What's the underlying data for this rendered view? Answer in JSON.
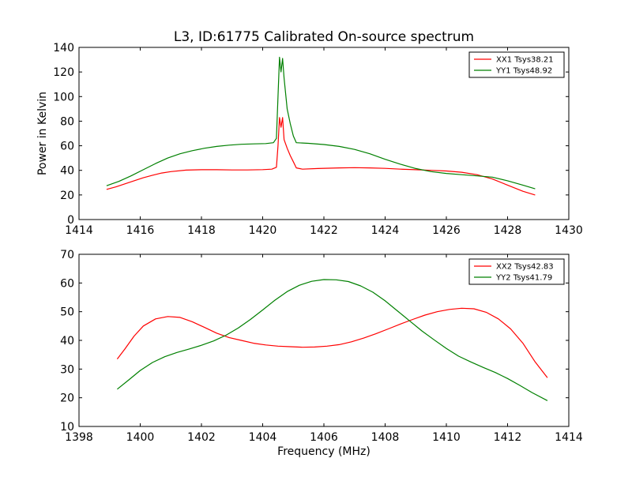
{
  "figure": {
    "title": "L3, ID:61775 Calibrated On-source spectrum",
    "ylabel": "Power in Kelvin",
    "xlabel": "Frequency (MHz)"
  },
  "chart_data": [
    {
      "type": "line",
      "title": "L3, ID:61775 Calibrated On-source spectrum",
      "xlabel": "",
      "ylabel": "Power in Kelvin",
      "xlim": [
        1414,
        1430
      ],
      "ylim": [
        0,
        140
      ],
      "xticks": [
        "1414",
        "1416",
        "1418",
        "1420",
        "1422",
        "1424",
        "1426",
        "1428",
        "1430"
      ],
      "yticks": [
        "0",
        "20",
        "40",
        "60",
        "80",
        "100",
        "120",
        "140"
      ],
      "legend": "top-right",
      "series": [
        {
          "name": "XX1 Tsys38.21",
          "color": "#ff0000",
          "points": [
            [
              1414.9,
              24.5
            ],
            [
              1415.2,
              26.5
            ],
            [
              1415.5,
              29
            ],
            [
              1415.8,
              31.5
            ],
            [
              1416.1,
              34
            ],
            [
              1416.4,
              36
            ],
            [
              1416.7,
              37.8
            ],
            [
              1417.0,
              39
            ],
            [
              1417.5,
              40.2
            ],
            [
              1418.0,
              40.5
            ],
            [
              1418.5,
              40.5
            ],
            [
              1419.0,
              40.3
            ],
            [
              1419.5,
              40.3
            ],
            [
              1420.0,
              40.6
            ],
            [
              1420.3,
              41
            ],
            [
              1420.45,
              42.5
            ],
            [
              1420.5,
              60
            ],
            [
              1420.55,
              83
            ],
            [
              1420.6,
              75
            ],
            [
              1420.65,
              83
            ],
            [
              1420.7,
              65
            ],
            [
              1420.8,
              58
            ],
            [
              1420.9,
              52
            ],
            [
              1421.0,
              47
            ],
            [
              1421.1,
              42
            ],
            [
              1421.3,
              41
            ],
            [
              1421.8,
              41.5
            ],
            [
              1422.5,
              42
            ],
            [
              1423.0,
              42.2
            ],
            [
              1423.5,
              42
            ],
            [
              1424.0,
              41.6
            ],
            [
              1424.5,
              41
            ],
            [
              1425.0,
              40.5
            ],
            [
              1425.5,
              40
            ],
            [
              1426.0,
              39.5
            ],
            [
              1426.5,
              38.5
            ],
            [
              1427.0,
              36.5
            ],
            [
              1427.5,
              33
            ],
            [
              1428.0,
              28
            ],
            [
              1428.5,
              23
            ],
            [
              1428.9,
              20
            ]
          ]
        },
        {
          "name": "YY1 Tsys48.92",
          "color": "#008000",
          "points": [
            [
              1414.9,
              27.5
            ],
            [
              1415.3,
              31
            ],
            [
              1415.7,
              35.5
            ],
            [
              1416.1,
              40.5
            ],
            [
              1416.5,
              45.5
            ],
            [
              1416.9,
              50
            ],
            [
              1417.3,
              53.5
            ],
            [
              1417.7,
              56
            ],
            [
              1418.1,
              58
            ],
            [
              1418.5,
              59.5
            ],
            [
              1418.9,
              60.5
            ],
            [
              1419.3,
              61.2
            ],
            [
              1419.7,
              61.5
            ],
            [
              1420.1,
              61.8
            ],
            [
              1420.35,
              62.5
            ],
            [
              1420.45,
              66
            ],
            [
              1420.5,
              100
            ],
            [
              1420.55,
              132
            ],
            [
              1420.6,
              120
            ],
            [
              1420.65,
              131
            ],
            [
              1420.7,
              115
            ],
            [
              1420.8,
              90
            ],
            [
              1420.9,
              78
            ],
            [
              1421.0,
              68
            ],
            [
              1421.1,
              62.5
            ],
            [
              1421.5,
              62
            ],
            [
              1422.0,
              61
            ],
            [
              1422.5,
              59.5
            ],
            [
              1423.0,
              57
            ],
            [
              1423.5,
              53.5
            ],
            [
              1424.0,
              49
            ],
            [
              1424.5,
              45
            ],
            [
              1425.0,
              41.5
            ],
            [
              1425.5,
              39
            ],
            [
              1426.0,
              37.5
            ],
            [
              1426.5,
              36.5
            ],
            [
              1427.0,
              35.5
            ],
            [
              1427.5,
              34.5
            ],
            [
              1428.0,
              31.5
            ],
            [
              1428.5,
              28
            ],
            [
              1428.9,
              25
            ]
          ]
        }
      ]
    },
    {
      "type": "line",
      "title": "",
      "xlabel": "Frequency (MHz)",
      "ylabel": "",
      "xlim": [
        1398,
        1414
      ],
      "ylim": [
        10,
        70
      ],
      "xticks": [
        "1398",
        "1400",
        "1402",
        "1404",
        "1406",
        "1408",
        "1410",
        "1412",
        "1414"
      ],
      "yticks": [
        "10",
        "20",
        "30",
        "40",
        "50",
        "60",
        "70"
      ],
      "legend": "top-right",
      "series": [
        {
          "name": "XX2 Tsys42.83",
          "color": "#ff0000",
          "points": [
            [
              1399.25,
              33.5
            ],
            [
              1399.5,
              37
            ],
            [
              1399.8,
              41.5
            ],
            [
              1400.1,
              45
            ],
            [
              1400.5,
              47.5
            ],
            [
              1400.9,
              48.3
            ],
            [
              1401.3,
              48
            ],
            [
              1401.7,
              46.5
            ],
            [
              1402.1,
              44.5
            ],
            [
              1402.5,
              42.5
            ],
            [
              1402.9,
              41
            ],
            [
              1403.3,
              40
            ],
            [
              1403.7,
              39
            ],
            [
              1404.1,
              38.4
            ],
            [
              1404.5,
              38
            ],
            [
              1404.9,
              37.8
            ],
            [
              1405.3,
              37.6
            ],
            [
              1405.7,
              37.7
            ],
            [
              1406.1,
              38
            ],
            [
              1406.5,
              38.5
            ],
            [
              1406.9,
              39.5
            ],
            [
              1407.3,
              40.8
            ],
            [
              1407.7,
              42.3
            ],
            [
              1408.1,
              44
            ],
            [
              1408.5,
              45.7
            ],
            [
              1408.9,
              47.3
            ],
            [
              1409.3,
              48.8
            ],
            [
              1409.7,
              50
            ],
            [
              1410.1,
              50.8
            ],
            [
              1410.5,
              51.2
            ],
            [
              1410.9,
              51
            ],
            [
              1411.3,
              49.8
            ],
            [
              1411.7,
              47.5
            ],
            [
              1412.1,
              44
            ],
            [
              1412.5,
              39
            ],
            [
              1412.9,
              32.5
            ],
            [
              1413.3,
              27
            ]
          ]
        },
        {
          "name": "YY2 Tsys41.79",
          "color": "#008000",
          "points": [
            [
              1399.25,
              23
            ],
            [
              1399.6,
              26
            ],
            [
              1400.0,
              29.5
            ],
            [
              1400.4,
              32.3
            ],
            [
              1400.8,
              34.3
            ],
            [
              1401.2,
              35.8
            ],
            [
              1401.6,
              37
            ],
            [
              1402.0,
              38.3
            ],
            [
              1402.4,
              39.8
            ],
            [
              1402.8,
              41.8
            ],
            [
              1403.2,
              44.3
            ],
            [
              1403.6,
              47.3
            ],
            [
              1404.0,
              50.6
            ],
            [
              1404.4,
              54
            ],
            [
              1404.8,
              57
            ],
            [
              1405.2,
              59.2
            ],
            [
              1405.6,
              60.6
            ],
            [
              1406.0,
              61.2
            ],
            [
              1406.4,
              61.1
            ],
            [
              1406.8,
              60.5
            ],
            [
              1407.2,
              59
            ],
            [
              1407.6,
              56.8
            ],
            [
              1408.0,
              53.8
            ],
            [
              1408.4,
              50.3
            ],
            [
              1408.8,
              46.8
            ],
            [
              1409.2,
              43.3
            ],
            [
              1409.6,
              40.2
            ],
            [
              1410.0,
              37.2
            ],
            [
              1410.4,
              34.5
            ],
            [
              1410.8,
              32.5
            ],
            [
              1411.2,
              30.6
            ],
            [
              1411.6,
              28.8
            ],
            [
              1412.0,
              26.7
            ],
            [
              1412.4,
              24.3
            ],
            [
              1412.8,
              21.8
            ],
            [
              1413.3,
              19
            ]
          ]
        }
      ]
    }
  ]
}
